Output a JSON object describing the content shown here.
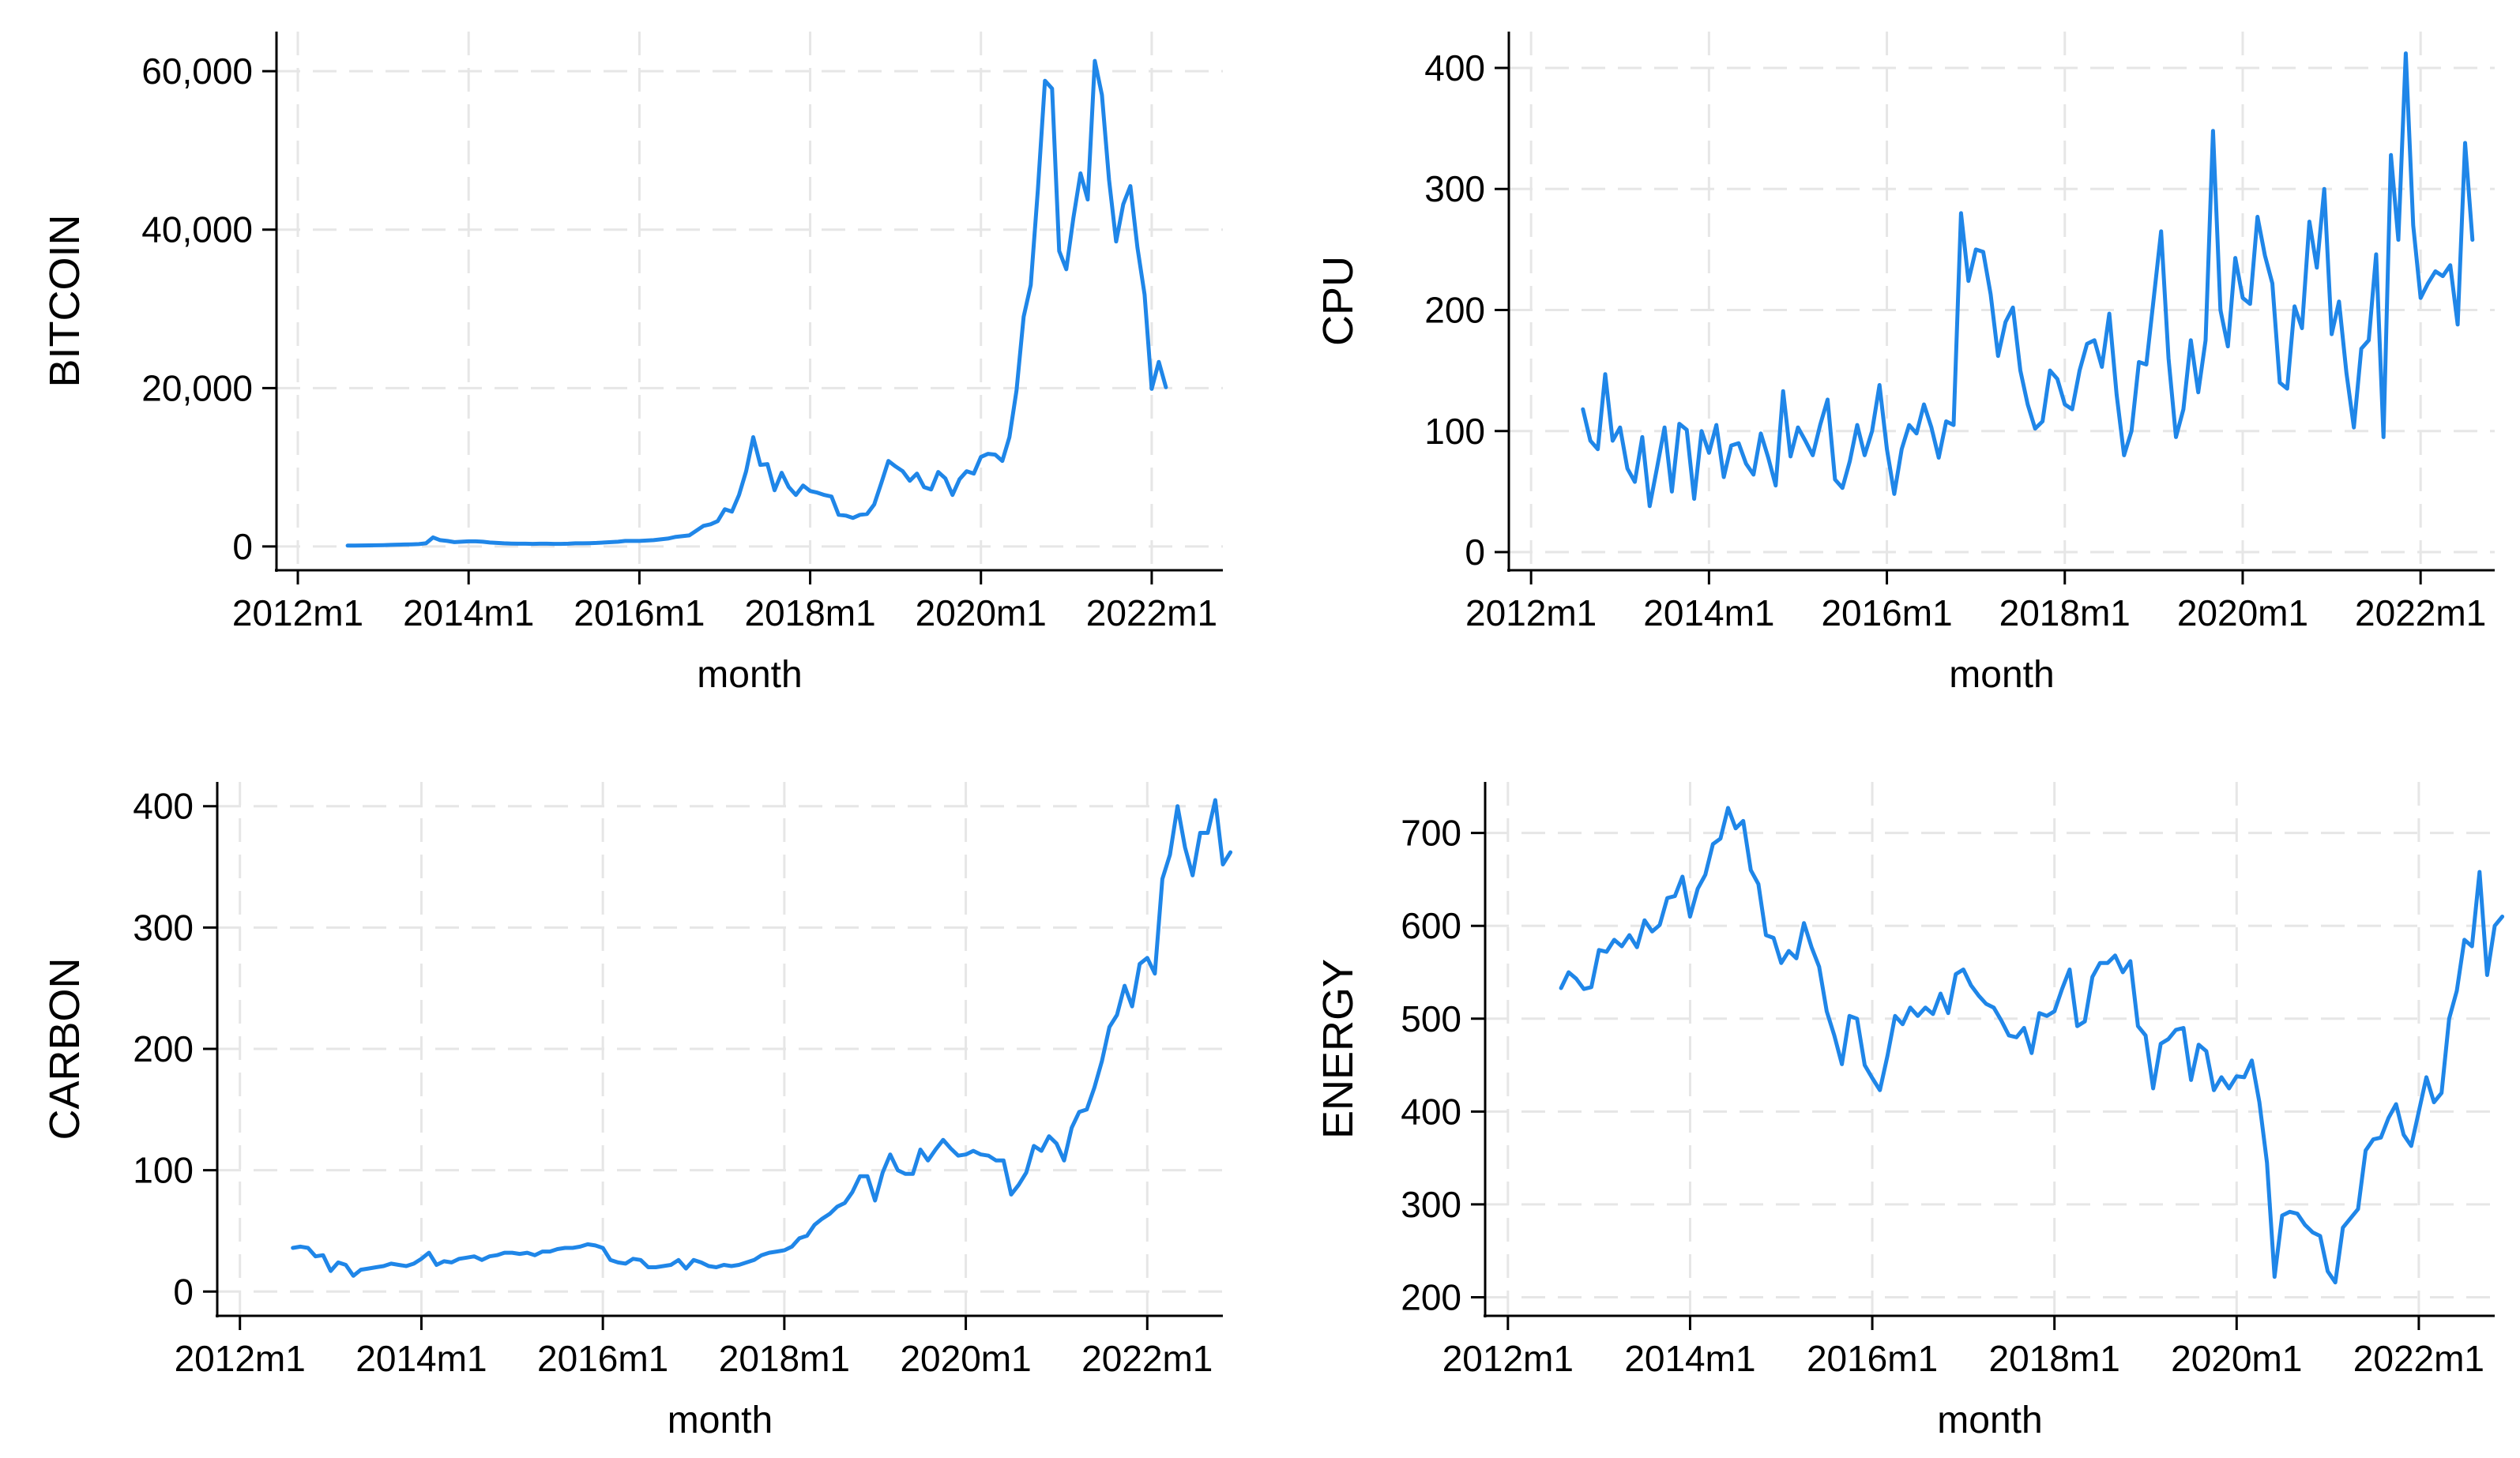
{
  "chart_data": [
    {
      "type": "line",
      "title": "",
      "xlabel": "month",
      "ylabel": "BITCOIN",
      "grid": true,
      "x_ticks": [
        "2012m1",
        "2014m1",
        "2016m1",
        "2018m1",
        "2020m1",
        "2022m1"
      ],
      "xlim": [
        "2011m10",
        "2022m11"
      ],
      "ylim": [
        -3000,
        65000
      ],
      "y_ticks": [
        0,
        20000,
        40000,
        60000
      ],
      "y_tick_labels": [
        "0",
        "20,000",
        "40,000",
        "60,000"
      ],
      "colors": {
        "line": "#1f86e8"
      },
      "series": [
        {
          "start": "2012m8",
          "values": [
            110,
            120,
            130,
            140,
            150,
            170,
            200,
            230,
            250,
            270,
            300,
            400,
            1150,
            800,
            700,
            550,
            600,
            650,
            650,
            600,
            500,
            450,
            400,
            370,
            350,
            350,
            330,
            350,
            350,
            330,
            330,
            350,
            400,
            400,
            420,
            450,
            500,
            550,
            600,
            700,
            700,
            700,
            750,
            800,
            900,
            1000,
            1200,
            1300,
            1400,
            2000,
            2600,
            2800,
            3200,
            4700,
            4400,
            6500,
            9500,
            13800,
            10300,
            10400,
            7100,
            9300,
            7500,
            6500,
            7700,
            7000,
            6800,
            6500,
            6300,
            4000,
            3900,
            3600,
            4000,
            4100,
            5300,
            8000,
            10800,
            10100,
            9500,
            8300,
            9200,
            7500,
            7200,
            9400,
            8600,
            6500,
            8500,
            9500,
            9200,
            11300,
            11700,
            11600,
            10800,
            13800,
            19700,
            29000,
            33000,
            45000,
            58800,
            57800,
            37300,
            35000,
            41500,
            47100,
            43800,
            61300,
            57000,
            46300,
            38500,
            43200,
            45500,
            37700,
            31800,
            19900,
            23300,
            20100
          ]
        }
      ]
    },
    {
      "type": "line",
      "title": "",
      "xlabel": "month",
      "ylabel": "CPU",
      "grid": true,
      "x_ticks": [
        "2012m1",
        "2014m1",
        "2016m1",
        "2018m1",
        "2020m1",
        "2022m1"
      ],
      "xlim": [
        "2011m10",
        "2022m11"
      ],
      "ylim": [
        -15,
        430
      ],
      "y_ticks": [
        0,
        100,
        200,
        300,
        400
      ],
      "y_tick_labels": [
        "0",
        "100",
        "200",
        "300",
        "400"
      ],
      "colors": {
        "line": "#1f86e8"
      },
      "series": [
        {
          "start": "2012m8",
          "values": [
            118,
            92,
            85,
            147,
            92,
            103,
            69,
            58,
            95,
            38,
            70,
            103,
            50,
            106,
            101,
            44,
            100,
            82,
            105,
            62,
            88,
            90,
            73,
            64,
            98,
            78,
            55,
            133,
            79,
            103,
            92,
            80,
            105,
            126,
            60,
            53,
            75,
            105,
            80,
            100,
            138,
            85,
            48,
            85,
            105,
            98,
            122,
            103,
            78,
            108,
            105,
            280,
            224,
            250,
            248,
            213,
            162,
            190,
            202,
            150,
            122,
            102,
            108,
            150,
            143,
            122,
            118,
            150,
            172,
            175,
            153,
            197,
            130,
            80,
            100,
            157,
            155,
            210,
            265,
            160,
            95,
            118,
            175,
            132,
            175,
            348,
            200,
            170,
            243,
            210,
            205,
            277,
            245,
            222,
            140,
            135,
            203,
            185,
            273,
            235,
            300,
            180,
            207,
            148,
            103,
            168,
            175,
            246,
            95,
            328,
            258,
            412,
            270,
            210,
            222,
            232,
            228,
            237,
            188,
            338,
            258
          ]
        }
      ]
    },
    {
      "type": "line",
      "title": "",
      "xlabel": "month",
      "ylabel": "CARBON",
      "grid": true,
      "x_ticks": [
        "2012m1",
        "2014m1",
        "2016m1",
        "2018m1",
        "2020m1",
        "2022m1"
      ],
      "xlim": [
        "2011m10",
        "2022m11"
      ],
      "ylim": [
        -20,
        420
      ],
      "y_ticks": [
        0,
        100,
        200,
        300,
        400
      ],
      "y_tick_labels": [
        "0",
        "100",
        "200",
        "300",
        "400"
      ],
      "colors": {
        "line": "#1f86e8"
      },
      "series": [
        {
          "start": "2012m8",
          "values": [
            36,
            37,
            36,
            29,
            30,
            17,
            24,
            22,
            13,
            18,
            19,
            20,
            21,
            23,
            22,
            21,
            23,
            27,
            32,
            22,
            25,
            24,
            27,
            28,
            29,
            26,
            29,
            30,
            32,
            32,
            31,
            32,
            30,
            33,
            33,
            35,
            36,
            36,
            37,
            39,
            38,
            36,
            26,
            24,
            23,
            27,
            26,
            20,
            20,
            21,
            22,
            26,
            19,
            26,
            24,
            21,
            20,
            22,
            21,
            22,
            24,
            26,
            30,
            32,
            33,
            34,
            37,
            44,
            46,
            55,
            60,
            64,
            70,
            73,
            82,
            95,
            95,
            75,
            98,
            113,
            100,
            97,
            97,
            117,
            108,
            117,
            125,
            118,
            112,
            113,
            116,
            113,
            112,
            108,
            108,
            80,
            88,
            98,
            120,
            116,
            128,
            122,
            108,
            135,
            148,
            150,
            168,
            190,
            218,
            228,
            252,
            235,
            270,
            275,
            262,
            340,
            360,
            400,
            366,
            343,
            378,
            378,
            405,
            352,
            362
          ]
        }
      ]
    },
    {
      "type": "line",
      "title": "",
      "xlabel": "month",
      "ylabel": "ENERGY",
      "grid": true,
      "x_ticks": [
        "2012m1",
        "2014m1",
        "2016m1",
        "2018m1",
        "2020m1",
        "2022m1"
      ],
      "xlim": [
        "2011m10",
        "2022m11"
      ],
      "ylim": [
        180,
        755
      ],
      "y_ticks": [
        200,
        300,
        400,
        500,
        600,
        700
      ],
      "y_tick_labels": [
        "200",
        "300",
        "400",
        "500",
        "600",
        "700"
      ],
      "colors": {
        "line": "#1f86e8"
      },
      "series": [
        {
          "start": "2012m8",
          "values": [
            533,
            550,
            543,
            532,
            534,
            574,
            572,
            585,
            578,
            590,
            577,
            606,
            594,
            601,
            630,
            632,
            653,
            610,
            640,
            655,
            688,
            694,
            727,
            705,
            713,
            660,
            645,
            590,
            587,
            560,
            573,
            565,
            603,
            577,
            556,
            508,
            482,
            451,
            503,
            500,
            450,
            436,
            423,
            460,
            503,
            494,
            512,
            503,
            512,
            505,
            527,
            506,
            548,
            553,
            536,
            525,
            516,
            512,
            498,
            482,
            480,
            490,
            463,
            506,
            503,
            508,
            532,
            553,
            492,
            497,
            545,
            560,
            560,
            568,
            550,
            562,
            492,
            482,
            425,
            473,
            478,
            488,
            490,
            434,
            472,
            465,
            423,
            437,
            425,
            438,
            437,
            455,
            410,
            345,
            222,
            288,
            292,
            290,
            278,
            270,
            266,
            228,
            216,
            275,
            285,
            295,
            358,
            370,
            372,
            393,
            408,
            375,
            363,
            400,
            437,
            410,
            420,
            500,
            530,
            585,
            578,
            658,
            547,
            600,
            610
          ]
        }
      ]
    }
  ]
}
